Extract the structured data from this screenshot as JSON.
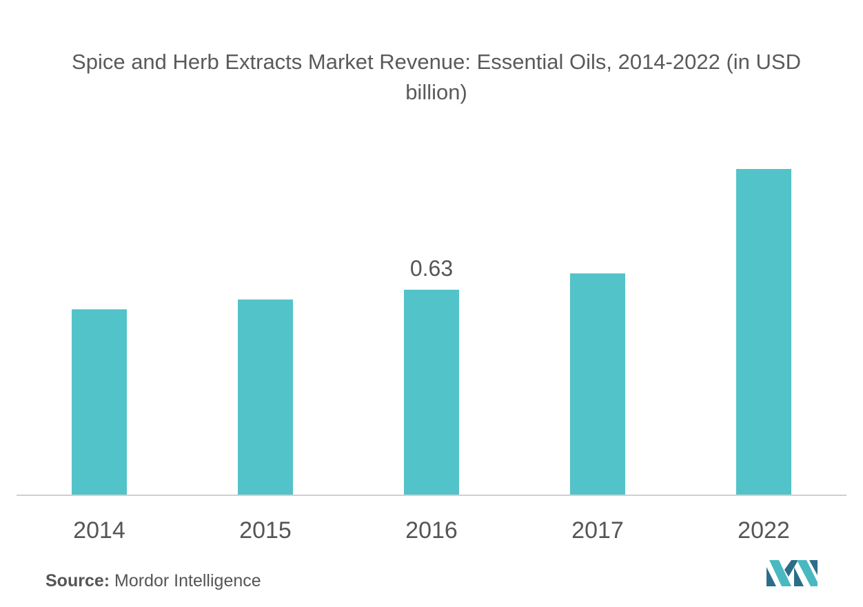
{
  "chart_data": {
    "type": "bar",
    "title": "Spice and Herb Extracts Market Revenue: Essential Oils, 2014-2022 (in USD billion)",
    "categories": [
      "2014",
      "2015",
      "2016",
      "2017",
      "2022"
    ],
    "values": [
      0.57,
      0.6,
      0.63,
      0.68,
      1.0
    ],
    "data_labels": [
      "",
      "",
      "0.63",
      "",
      ""
    ],
    "xlabel": "",
    "ylabel": "",
    "ylim": [
      0,
      1.0
    ],
    "grid": false,
    "bar_color": "#52c3c9"
  },
  "source": {
    "label": "Source:",
    "text": "Mordor Intelligence"
  },
  "logo": {
    "icon": "mordor-intelligence-logo-icon",
    "colors": [
      "#2c6e8a",
      "#4ab8c0"
    ]
  }
}
